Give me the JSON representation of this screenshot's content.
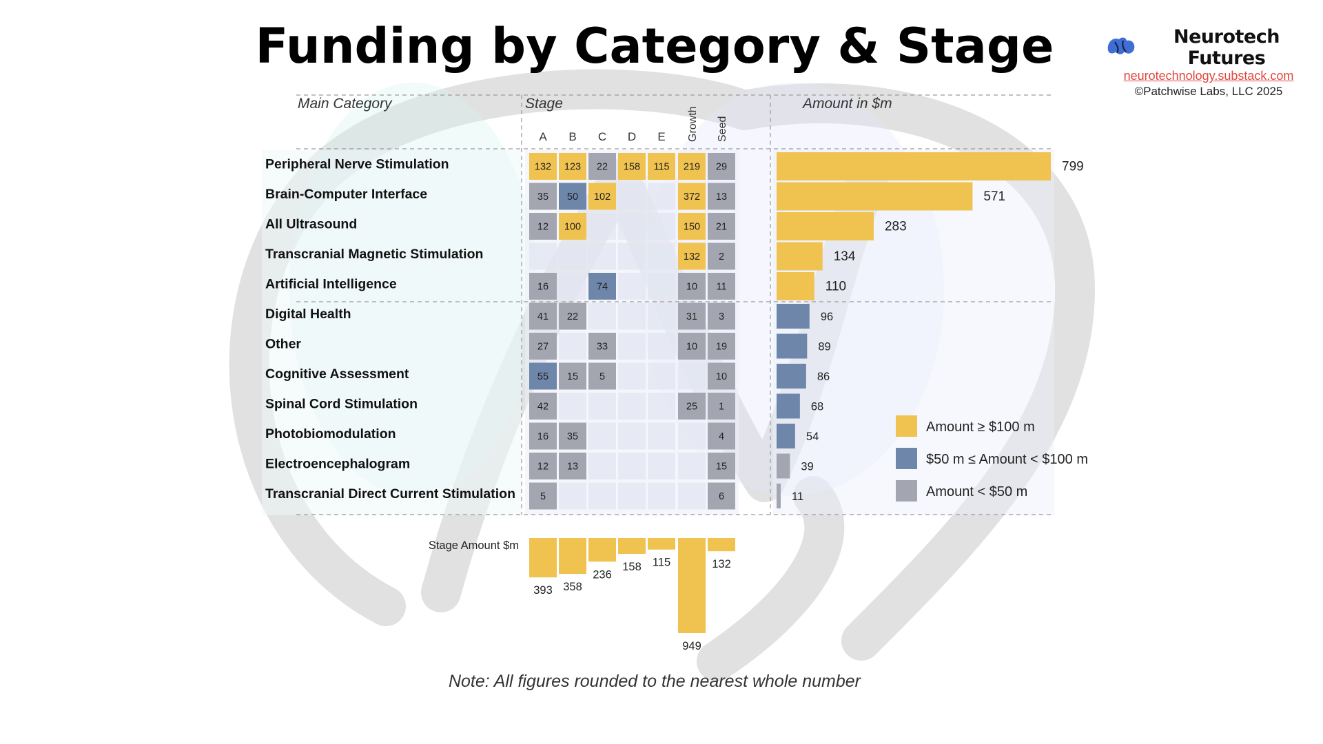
{
  "title": "Funding by Category & Stage",
  "brand": {
    "name": "Neurotech Futures",
    "url": "neurotechnology.substack.com",
    "copyright": "©Patchwise Labs, LLC 2025",
    "logo_icon": "brain-icon"
  },
  "note": "Note: All figures rounded to the nearest whole number",
  "colors": {
    "high": "#f0c24f",
    "mid": "#6f86ab",
    "low": "#a3a6b0",
    "empty": "#e2e5f2",
    "watermark": "#d9d9d9"
  },
  "chart_data": {
    "type": "heatmap",
    "headers": {
      "category": "Main Category",
      "stage": "Stage",
      "amount": "Amount in $m",
      "stage_amount": "Stage Amount $m"
    },
    "stages": [
      "A",
      "B",
      "C",
      "D",
      "E",
      "Growth",
      "Seed"
    ],
    "categories": [
      {
        "name": "Peripheral Nerve Stimulation",
        "values": [
          132,
          123,
          22,
          158,
          115,
          219,
          29
        ],
        "total": 799
      },
      {
        "name": "Brain-Computer Interface",
        "values": [
          35,
          50,
          102,
          null,
          null,
          372,
          13
        ],
        "total": 571
      },
      {
        "name": "All Ultrasound",
        "values": [
          12,
          100,
          null,
          null,
          null,
          150,
          21
        ],
        "total": 283
      },
      {
        "name": "Transcranial Magnetic Stimulation",
        "values": [
          null,
          null,
          null,
          null,
          null,
          132,
          2
        ],
        "total": 134
      },
      {
        "name": "Artificial Intelligence",
        "values": [
          16,
          null,
          74,
          null,
          null,
          10,
          11
        ],
        "total": 110
      },
      {
        "name": "Digital Health",
        "values": [
          41,
          22,
          null,
          null,
          null,
          31,
          3
        ],
        "total": 96
      },
      {
        "name": "Other",
        "values": [
          27,
          null,
          33,
          null,
          null,
          10,
          19
        ],
        "total": 89
      },
      {
        "name": "Cognitive Assessment",
        "values": [
          55,
          15,
          5,
          null,
          null,
          null,
          10
        ],
        "total": 86
      },
      {
        "name": "Spinal Cord Stimulation",
        "values": [
          42,
          null,
          null,
          null,
          null,
          25,
          1
        ],
        "total": 68
      },
      {
        "name": "Photobiomodulation",
        "values": [
          16,
          35,
          null,
          null,
          null,
          null,
          4
        ],
        "total": 54
      },
      {
        "name": "Electroencephalogram",
        "values": [
          12,
          13,
          null,
          null,
          null,
          null,
          15
        ],
        "total": 39
      },
      {
        "name": "Transcranial Direct Current Stimulation",
        "values": [
          5,
          null,
          null,
          null,
          null,
          null,
          6
        ],
        "total": 11
      }
    ],
    "stage_totals": [
      393,
      358,
      236,
      158,
      115,
      949,
      132
    ],
    "legend": [
      {
        "label": "Amount  ≥  $100 m",
        "color_key": "high"
      },
      {
        "label": "$50 m  ≤ Amount  <  $100 m",
        "color_key": "mid"
      },
      {
        "label": "Amount  <  $50 m",
        "color_key": "low"
      }
    ],
    "legend_position": "right"
  }
}
